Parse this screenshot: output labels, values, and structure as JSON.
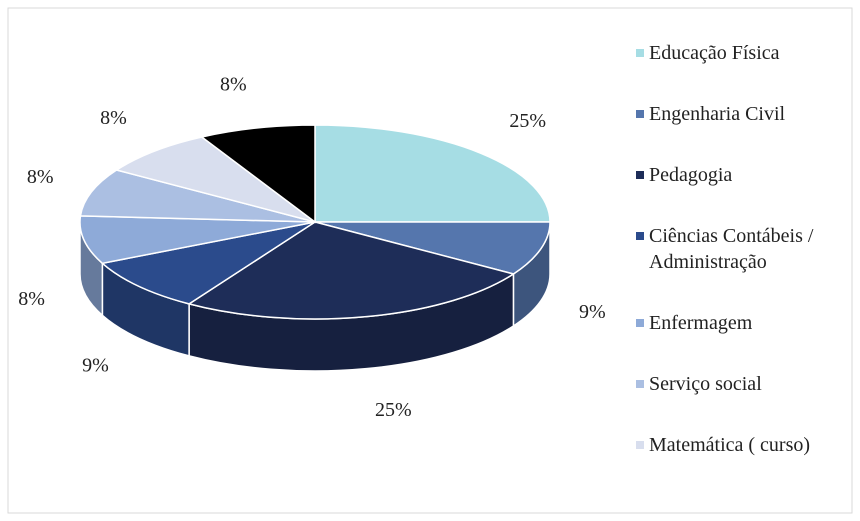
{
  "chart_data": {
    "type": "pie",
    "categories": [
      "Educação Física",
      "Engenharia Civil",
      "Pedagogia",
      "Ciências Contábeis / Administração",
      "Enfermagem",
      "Serviço social",
      "Matemática ( curso)",
      null
    ],
    "values": [
      25,
      9,
      25,
      9,
      8,
      8,
      8,
      8
    ],
    "value_labels": [
      "25%",
      "9%",
      "25%",
      "9%",
      "8%",
      "8%",
      "8%",
      "8%"
    ],
    "colors": [
      "#a6dde4",
      "#5576ad",
      "#1e2d58",
      "#2b4b8c",
      "#8eaad8",
      "#abbfe2",
      "#d8deee",
      "#000000"
    ],
    "legend": "right",
    "three_d": true
  }
}
